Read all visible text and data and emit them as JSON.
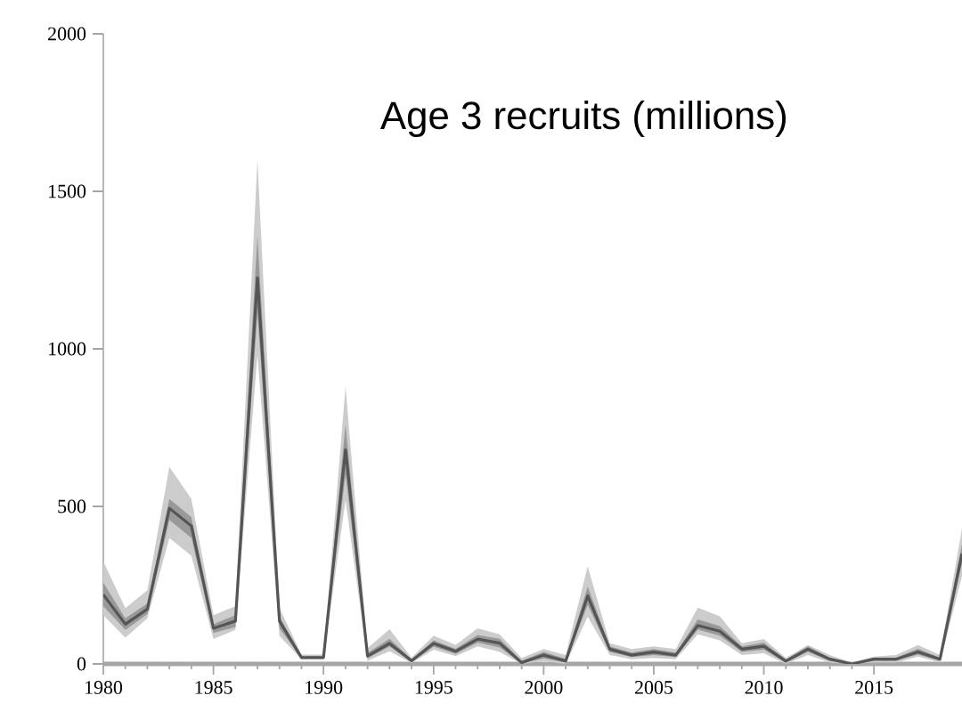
{
  "chart_data": {
    "type": "line",
    "title": "Age 3 recruits (millions)",
    "x": [
      1980,
      1981,
      1982,
      1983,
      1984,
      1985,
      1986,
      1987,
      1988,
      1989,
      1990,
      1991,
      1992,
      1993,
      1994,
      1995,
      1996,
      1997,
      1998,
      1999,
      2000,
      2001,
      2002,
      2003,
      2004,
      2005,
      2006,
      2007,
      2008,
      2009,
      2010,
      2011,
      2012,
      2013,
      2014,
      2015,
      2016,
      2017,
      2018,
      2019
    ],
    "series": [
      {
        "color": "#cccccc",
        "values": [
          null,
          null,
          null,
          null,
          null,
          null,
          null,
          null,
          null,
          null,
          null,
          null,
          null,
          null,
          null,
          null,
          null,
          null,
          null,
          null,
          null,
          null,
          null,
          null,
          null,
          null,
          null,
          null,
          null,
          null,
          null,
          null,
          null,
          null,
          null,
          null,
          null,
          null,
          null,
          null
        ],
        "lower": [
          155,
          83,
          145,
          400,
          343,
          79,
          108,
          980,
          89,
          15,
          15,
          520,
          10,
          40,
          3,
          45,
          25,
          56,
          38,
          0,
          9,
          0,
          150,
          28,
          15,
          19,
          15,
          94,
          75,
          28,
          34,
          0,
          28,
          4,
          0,
          4,
          4,
          23,
          4,
          280
        ],
        "upper": [
          325,
          177,
          234,
          626,
          523,
          155,
          183,
          1600,
          177,
          30,
          30,
          880,
          50,
          110,
          20,
          90,
          60,
          113,
          94,
          19,
          47,
          28,
          310,
          66,
          47,
          56,
          47,
          179,
          151,
          66,
          79,
          19,
          60,
          28,
          4,
          23,
          28,
          60,
          28,
          430
        ]
      },
      {
        "color": "#999999",
        "values": [
          null,
          null,
          null,
          null,
          null,
          null,
          null,
          null,
          null,
          null,
          null,
          null,
          null,
          null,
          null,
          null,
          null,
          null,
          null,
          null,
          null,
          null,
          null,
          null,
          null,
          null,
          null,
          null,
          null,
          null,
          null,
          null,
          null,
          null,
          null,
          null,
          null,
          null,
          null,
          null
        ],
        "lower": [
          183,
          108,
          158,
          457,
          400,
          98,
          117,
          1113,
          113,
          17,
          17,
          600,
          18,
          55,
          6,
          55,
          32,
          68,
          52,
          2,
          18,
          4,
          188,
          38,
          22,
          28,
          22,
          109,
          90,
          38,
          45,
          4,
          38,
          10,
          0,
          10,
          10,
          30,
          10,
          320
        ],
        "upper": [
          258,
          145,
          192,
          523,
          466,
          126,
          155,
          1359,
          151,
          24,
          24,
          760,
          35,
          80,
          14,
          75,
          48,
          92,
          80,
          10,
          38,
          16,
          245,
          56,
          36,
          47,
          36,
          141,
          120,
          56,
          68,
          14,
          56,
          20,
          2,
          20,
          20,
          48,
          20,
          380
        ]
      },
      {
        "color": "#555555",
        "values": [
          220,
          126,
          174,
          494,
          438,
          113,
          136,
          1226,
          136,
          20,
          20,
          680,
          25,
          65,
          10,
          65,
          40,
          79,
          66,
          4,
          28,
          9,
          216,
          47,
          28,
          38,
          28,
          122,
          104,
          47,
          56,
          9,
          47,
          15,
          0,
          15,
          15,
          38,
          15,
          350
        ]
      }
    ],
    "xlim": [
      1980,
      2019
    ],
    "ylim": [
      0,
      2000
    ],
    "xticks": [
      1980,
      1985,
      1990,
      1995,
      2000,
      2005,
      2010,
      2015
    ],
    "yticks": [
      0,
      500,
      1000,
      1500,
      2000
    ]
  }
}
